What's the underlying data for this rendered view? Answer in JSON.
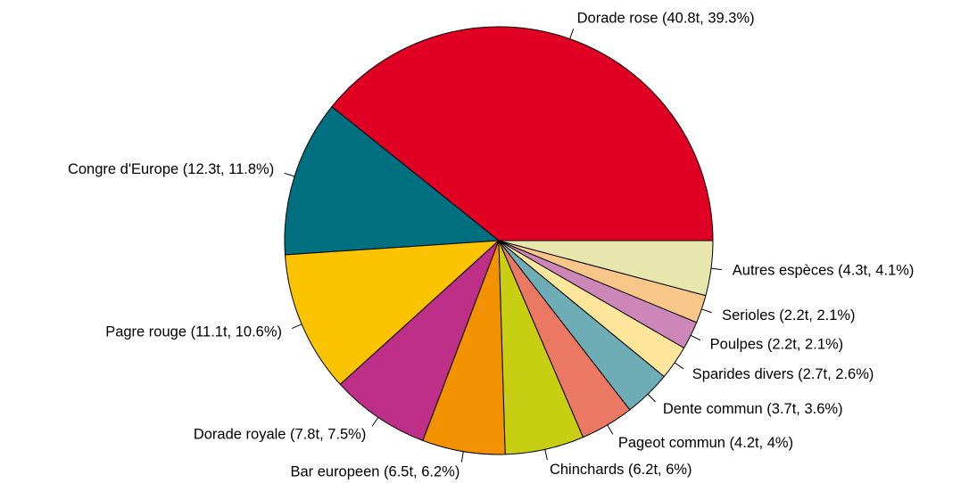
{
  "chart_data": {
    "type": "pie",
    "title": "",
    "slices": [
      {
        "label": "Dorade rose (40.8t, 39.3%)",
        "name": "Dorade rose",
        "tonnage": 40.8,
        "percent": 39.3,
        "color": "#e00024"
      },
      {
        "label": "Congre d'Europe (12.3t, 11.8%)",
        "name": "Congre d'Europe",
        "tonnage": 12.3,
        "percent": 11.8,
        "color": "#006f7f"
      },
      {
        "label": "Pagre rouge (11.1t, 10.6%)",
        "name": "Pagre rouge",
        "tonnage": 11.1,
        "percent": 10.6,
        "color": "#fbc300"
      },
      {
        "label": "Dorade royale (7.8t, 7.5%)",
        "name": "Dorade royale",
        "tonnage": 7.8,
        "percent": 7.5,
        "color": "#be3088"
      },
      {
        "label": "Bar europeen (6.5t, 6.2%)",
        "name": "Bar europeen",
        "tonnage": 6.5,
        "percent": 6.2,
        "color": "#f39200"
      },
      {
        "label": "Chinchards (6.2t, 6%)",
        "name": "Chinchards",
        "tonnage": 6.2,
        "percent": 6,
        "color": "#c8cf13"
      },
      {
        "label": "Pageot commun (4.2t, 4%)",
        "name": "Pageot commun",
        "tonnage": 4.2,
        "percent": 4,
        "color": "#ea7862"
      },
      {
        "label": "Dente commun (3.7t, 3.6%)",
        "name": "Dente commun",
        "tonnage": 3.7,
        "percent": 3.6,
        "color": "#6eacb6"
      },
      {
        "label": "Sparides divers (2.7t, 2.6%)",
        "name": "Sparides divers",
        "tonnage": 2.7,
        "percent": 2.6,
        "color": "#fde59c"
      },
      {
        "label": "Poulpes (2.2t, 2.1%)",
        "name": "Poulpes",
        "tonnage": 2.2,
        "percent": 2.1,
        "color": "#cc86b8"
      },
      {
        "label": "Serioles (2.2t, 2.1%)",
        "name": "Serioles",
        "tonnage": 2.2,
        "percent": 2.1,
        "color": "#f9c68a"
      },
      {
        "label": "Autres espèces (4.3t, 4.1%)",
        "name": "Autres espèces",
        "tonnage": 4.3,
        "percent": 4.1,
        "color": "#e6e6ad"
      }
    ],
    "start_angle": "right (0°)",
    "direction": "counter-clockwise",
    "legend": "none (labels outside slices)"
  }
}
